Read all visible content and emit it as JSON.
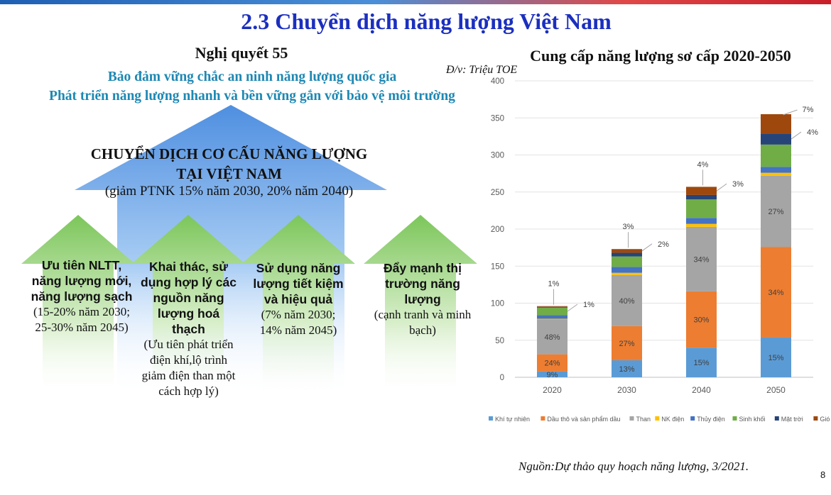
{
  "slide": {
    "title": "2.3 Chuyển dịch năng lượng Việt Nam",
    "page_number": "8",
    "source": "Nguồn:Dự thảo quy hoạch năng lượng, 3/2021."
  },
  "left": {
    "heading": "Nghị quyết 55",
    "goal1": "Bảo đảm vững chắc an ninh năng lượng quốc gia",
    "goal2": "Phát triển năng lượng nhanh và bền vững gắn với bảo vệ môi trường",
    "central_title1": "CHUYỂN DỊCH CƠ CẤU NĂNG LƯỢNG",
    "central_title2": "TẠI VIỆT NAM",
    "central_note": "(giảm PTNK 15% năm 2030, 20% năm 2040)",
    "arrows": [
      {
        "bold": "Ưu tiên NLTT, năng lượng mới, năng lượng sạch",
        "note": "(15-20% năm 2030; 25-30% năm 2045)"
      },
      {
        "bold": "Khai thác, sử dụng hợp lý các nguồn năng lượng hoá thạch",
        "note": "(Ưu tiên phát triển điện khí,lộ trình giảm điện than một cách hợp lý)"
      },
      {
        "bold": "Sử dụng năng lượng tiết kiệm và hiệu quả",
        "note": "(7% năm 2030; 14% năm 2045)"
      },
      {
        "bold": "Đẩy mạnh thị trường năng lượng",
        "note": "(cạnh tranh và minh bạch)"
      }
    ],
    "colors": {
      "goal": "#1e88b3",
      "title": "#1b2fbf",
      "arrow_green": "#8fcf6a",
      "house_blue": "#6fa8e6"
    }
  },
  "chart_data": {
    "type": "bar",
    "stacked": true,
    "title": "Cung cấp năng lượng sơ cấp 2020-2050",
    "unit_label": "Đ/v: Triệu TOE",
    "categories": [
      "2020",
      "2030",
      "2040",
      "2050"
    ],
    "ylim": [
      0,
      400
    ],
    "yticks": [
      0,
      50,
      100,
      150,
      200,
      250,
      300,
      350,
      400
    ],
    "grid": true,
    "legend_position": "bottom",
    "series": [
      {
        "name": "Khí tự nhiên",
        "color": "#5b9bd5",
        "values": [
          8,
          23,
          40,
          54
        ],
        "labels": [
          "9%",
          "13%",
          "15%",
          "15%"
        ]
      },
      {
        "name": "Dầu thô và sản phẩm dầu",
        "color": "#ed7d31",
        "values": [
          23,
          46,
          76,
          122
        ],
        "labels": [
          "24%",
          "27%",
          "30%",
          "34%"
        ]
      },
      {
        "name": "Than",
        "color": "#a5a5a5",
        "values": [
          47,
          69,
          87,
          96
        ],
        "labels": [
          "48%",
          "40%",
          "34%",
          "27%"
        ]
      },
      {
        "name": "NK điện",
        "color": "#ffc000",
        "values": [
          1,
          3,
          4,
          4
        ],
        "labels": [
          "",
          "",
          "",
          ""
        ]
      },
      {
        "name": "Thủy điện",
        "color": "#4472c4",
        "values": [
          5,
          8,
          8,
          8
        ],
        "labels": [
          "",
          "",
          "",
          ""
        ]
      },
      {
        "name": "Sinh khối",
        "color": "#70ad47",
        "values": [
          10,
          14,
          25,
          30
        ],
        "labels": [
          "",
          "",
          "",
          ""
        ]
      },
      {
        "name": "Mặt trời",
        "color": "#264478",
        "values": [
          1,
          5,
          6,
          15
        ],
        "labels": [
          "",
          "",
          "",
          ""
        ]
      },
      {
        "name": "Gió",
        "color": "#9e480e",
        "values": [
          1,
          5,
          11,
          26
        ],
        "labels": [
          "",
          "",
          "",
          ""
        ]
      }
    ],
    "annotations": [
      {
        "category": "2020",
        "text": "1%",
        "series": "Gió",
        "side": "top"
      },
      {
        "category": "2020",
        "text": "1%",
        "series": "Sinh khối",
        "side": "right"
      },
      {
        "category": "2030",
        "text": "3%",
        "series": "Gió",
        "side": "top"
      },
      {
        "category": "2030",
        "text": "2%",
        "series": "Gió",
        "side": "right"
      },
      {
        "category": "2040",
        "text": "4%",
        "series": "Gió",
        "side": "top"
      },
      {
        "category": "2040",
        "text": "3%",
        "series": "Gió",
        "side": "right"
      },
      {
        "category": "2050",
        "text": "7%",
        "series": "Gió",
        "side": "top-right"
      },
      {
        "category": "2050",
        "text": "4%",
        "series": "Mặt trời",
        "side": "right"
      }
    ]
  }
}
